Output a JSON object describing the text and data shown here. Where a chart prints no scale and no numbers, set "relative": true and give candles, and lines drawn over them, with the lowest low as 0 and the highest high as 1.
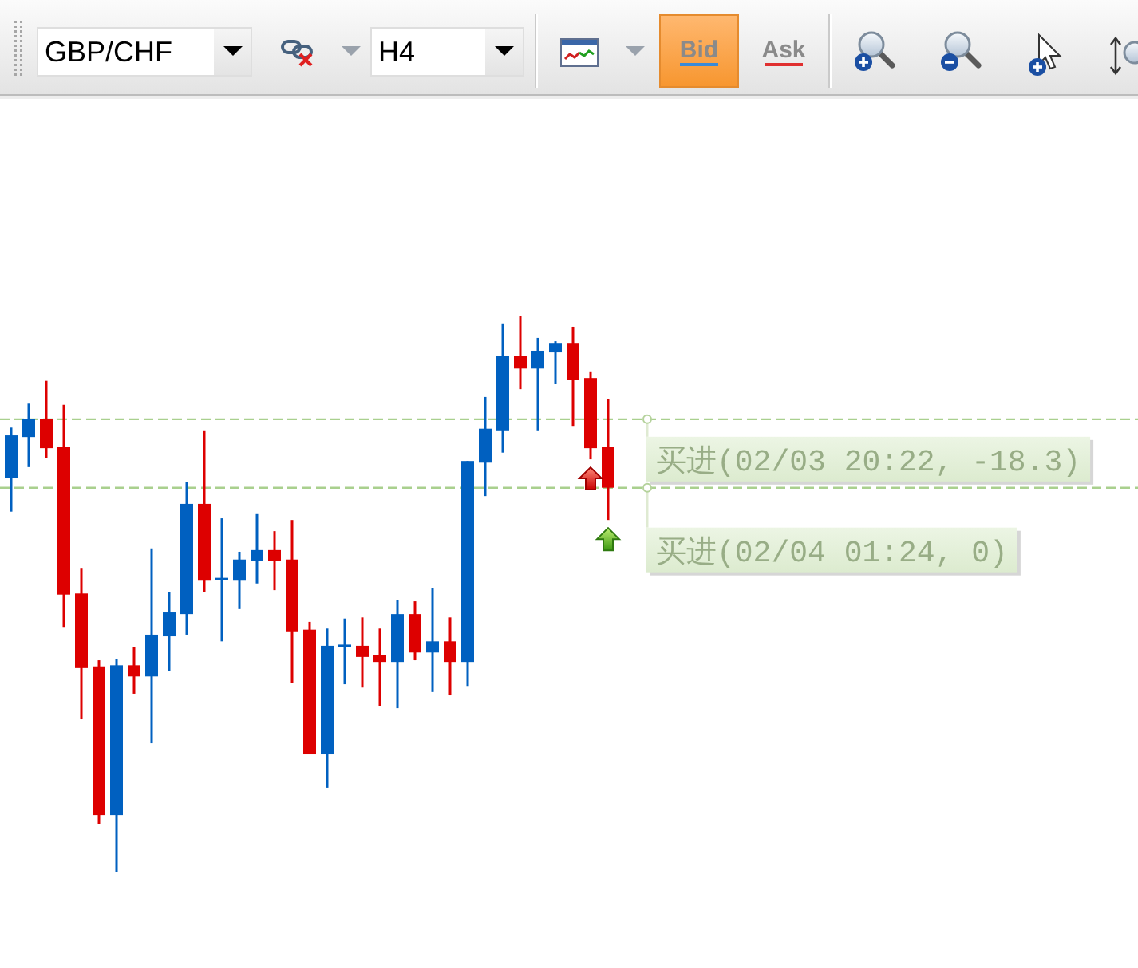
{
  "chart_data": {
    "type": "candlestick",
    "title": "GBP/CHF",
    "subtitle": "H4",
    "relative": true,
    "annotations": [
      "Bid",
      "Ask",
      {
        "text": "买进(02/03 20:22, -18.3)",
        "y": 0.814
      },
      {
        "text": "买进(02/04 01:24, 0)",
        "y": 0.691
      }
    ],
    "categories": [
      null,
      null,
      null,
      null,
      null,
      null,
      null,
      null,
      null,
      null,
      null,
      null,
      null,
      null,
      null,
      null,
      null,
      null,
      null,
      null,
      null,
      null,
      null,
      null,
      null,
      null,
      null,
      null,
      null,
      null,
      null,
      null,
      null,
      null,
      null
    ],
    "ohlc": [
      [
        0.708,
        0.799,
        0.648,
        0.785
      ],
      [
        0.782,
        0.842,
        0.728,
        0.814
      ],
      [
        0.814,
        0.883,
        0.745,
        0.762
      ],
      [
        0.765,
        0.84,
        0.441,
        0.499
      ],
      [
        0.501,
        0.547,
        0.275,
        0.367
      ],
      [
        0.37,
        0.381,
        0.086,
        0.103
      ],
      [
        0.103,
        0.384,
        0,
        0.372
      ],
      [
        0.372,
        0.404,
        0.321,
        0.352
      ],
      [
        0.352,
        0.582,
        0.232,
        0.427
      ],
      [
        0.424,
        0.504,
        0.361,
        0.467
      ],
      [
        0.464,
        0.702,
        0.427,
        0.662
      ],
      [
        0.662,
        0.794,
        0.504,
        0.524
      ],
      [
        0.527,
        0.636,
        0.415,
        0.527
      ],
      [
        0.524,
        0.576,
        0.473,
        0.562
      ],
      [
        0.559,
        0.645,
        0.519,
        0.579
      ],
      [
        0.579,
        0.613,
        0.507,
        0.559
      ],
      [
        0.562,
        0.633,
        0.341,
        0.433
      ],
      [
        0.436,
        0.45,
        0.212,
        0.212
      ],
      [
        0.212,
        0.438,
        0.152,
        0.407
      ],
      [
        0.407,
        0.456,
        0.338,
        0.407
      ],
      [
        0.407,
        0.458,
        0.332,
        0.387
      ],
      [
        0.39,
        0.438,
        0.298,
        0.378
      ],
      [
        0.378,
        0.49,
        0.295,
        0.464
      ],
      [
        0.464,
        0.487,
        0.381,
        0.395
      ],
      [
        0.395,
        0.51,
        0.324,
        0.415
      ],
      [
        0.415,
        0.458,
        0.318,
        0.378
      ],
      [
        0.378,
        0.739,
        0.335,
        0.739
      ],
      [
        0.736,
        0.854,
        0.676,
        0.797
      ],
      [
        0.794,
        0.986,
        0.754,
        0.928
      ],
      [
        0.928,
        1,
        0.868,
        0.905
      ],
      [
        0.905,
        0.96,
        0.794,
        0.937
      ],
      [
        0.934,
        0.954,
        0.877,
        0.951
      ],
      [
        0.951,
        0.98,
        0.802,
        0.885
      ],
      [
        0.888,
        0.9,
        0.742,
        0.762
      ],
      [
        0.765,
        0.851,
        0.633,
        0.691
      ]
    ],
    "colors": [
      "#0060c0",
      "#0060c0",
      "#dd0000",
      "#dd0000",
      "#dd0000",
      "#dd0000",
      "#0060c0",
      "#dd0000",
      "#0060c0",
      "#0060c0",
      "#0060c0",
      "#dd0000",
      "#0060c0",
      "#0060c0",
      "#0060c0",
      "#dd0000",
      "#dd0000",
      "#dd0000",
      "#0060c0",
      "#0060c0",
      "#dd0000",
      "#dd0000",
      "#0060c0",
      "#dd0000",
      "#0060c0",
      "#dd0000",
      "#0060c0",
      "#0060c0",
      "#0060c0",
      "#dd0000",
      "#0060c0",
      "#0060c0",
      "#dd0000",
      "#dd0000",
      "#dd0000"
    ],
    "ref_lines": [
      {
        "axis": "y",
        "value": 0.814,
        "color": "#a9d08e",
        "line_style": "dashed"
      },
      {
        "axis": "y",
        "value": 0.691,
        "color": "#a9d08e",
        "line_style": "dashed"
      }
    ]
  }
}
